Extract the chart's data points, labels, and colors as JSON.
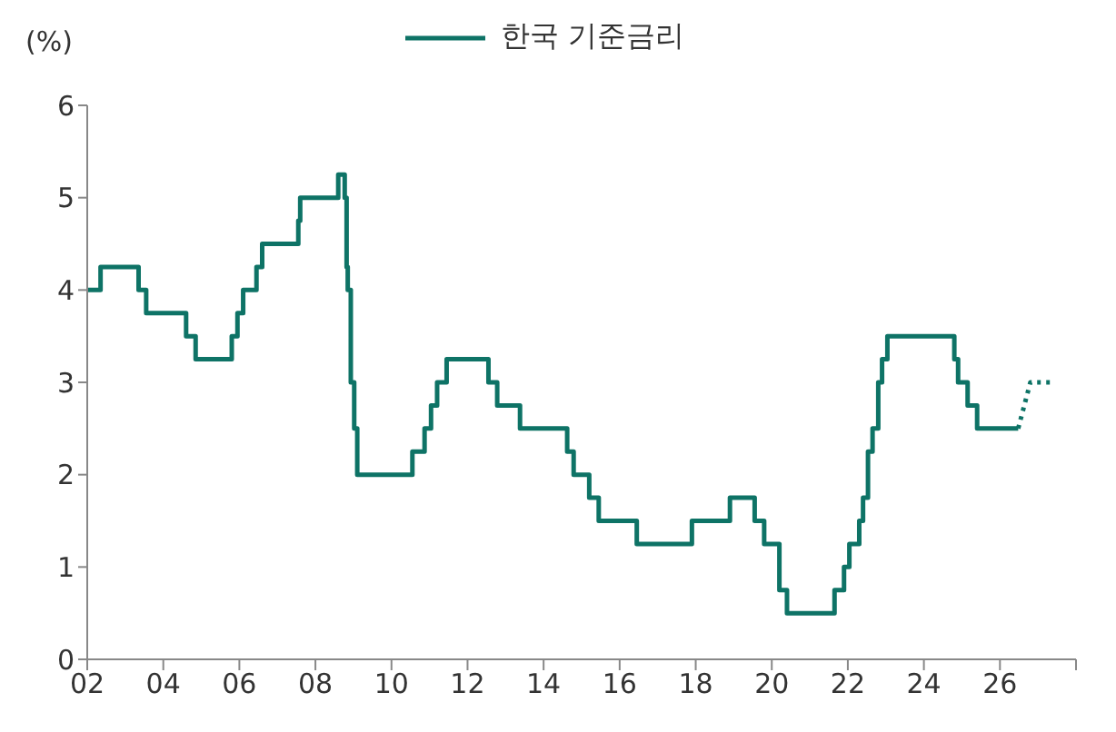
{
  "chart_data": {
    "type": "step",
    "ylabel": "(%)",
    "legend": "top",
    "grid": false,
    "marker": "none",
    "xlim": [
      2002,
      2028
    ],
    "xticks": [
      {
        "value": 2002,
        "label": "02"
      },
      {
        "value": 2004,
        "label": "04"
      },
      {
        "value": 2006,
        "label": "06"
      },
      {
        "value": 2008,
        "label": "08"
      },
      {
        "value": 2010,
        "label": "10"
      },
      {
        "value": 2012,
        "label": "12"
      },
      {
        "value": 2014,
        "label": "14"
      },
      {
        "value": 2016,
        "label": "16"
      },
      {
        "value": 2018,
        "label": "18"
      },
      {
        "value": 2020,
        "label": "20"
      },
      {
        "value": 2022,
        "label": "22"
      },
      {
        "value": 2024,
        "label": "24"
      },
      {
        "value": 2026,
        "label": "26"
      },
      {
        "value": 2028,
        "label": null
      }
    ],
    "ylim": [
      0,
      6
    ],
    "yticks": [
      0,
      1,
      2,
      3,
      4,
      5,
      6
    ],
    "series": [
      {
        "name": "한국 기준금리",
        "color": "#0e7366",
        "line_style": "solid",
        "x": [
          2002.0,
          2002.35,
          2003.35,
          2003.55,
          2004.6,
          2004.85,
          2005.8,
          2005.95,
          2006.1,
          2006.45,
          2006.6,
          2007.55,
          2007.6,
          2008.6,
          2008.77,
          2008.82,
          2008.85,
          2008.93,
          2009.02,
          2009.1,
          2010.55,
          2010.87,
          2011.04,
          2011.2,
          2011.45,
          2012.55,
          2012.78,
          2013.38,
          2014.62,
          2014.79,
          2015.2,
          2015.45,
          2016.45,
          2017.9,
          2018.9,
          2019.55,
          2019.8,
          2020.2,
          2020.4,
          2021.65,
          2021.9,
          2022.04,
          2022.3,
          2022.4,
          2022.53,
          2022.65,
          2022.8,
          2022.9,
          2023.04,
          2024.8,
          2024.9,
          2025.15,
          2025.4,
          2026.48
        ],
        "values": [
          4.0,
          4.25,
          4.0,
          3.75,
          3.5,
          3.25,
          3.5,
          3.75,
          4.0,
          4.25,
          4.5,
          4.75,
          5.0,
          5.25,
          5.0,
          4.25,
          4.0,
          3.0,
          2.5,
          2.0,
          2.25,
          2.5,
          2.75,
          3.0,
          3.25,
          3.0,
          2.75,
          2.5,
          2.25,
          2.0,
          1.75,
          1.5,
          1.25,
          1.5,
          1.75,
          1.5,
          1.25,
          0.75,
          0.5,
          0.75,
          1.0,
          1.25,
          1.5,
          1.75,
          2.25,
          2.5,
          3.0,
          3.25,
          3.5,
          3.25,
          3.0,
          2.75,
          2.5,
          2.5
        ]
      },
      {
        "type": "line",
        "color": "#0e7366",
        "line_style": "dotted",
        "x": [
          2026.48,
          2026.8,
          2027.45
        ],
        "values": [
          2.5,
          3.0,
          3.0
        ]
      }
    ]
  }
}
